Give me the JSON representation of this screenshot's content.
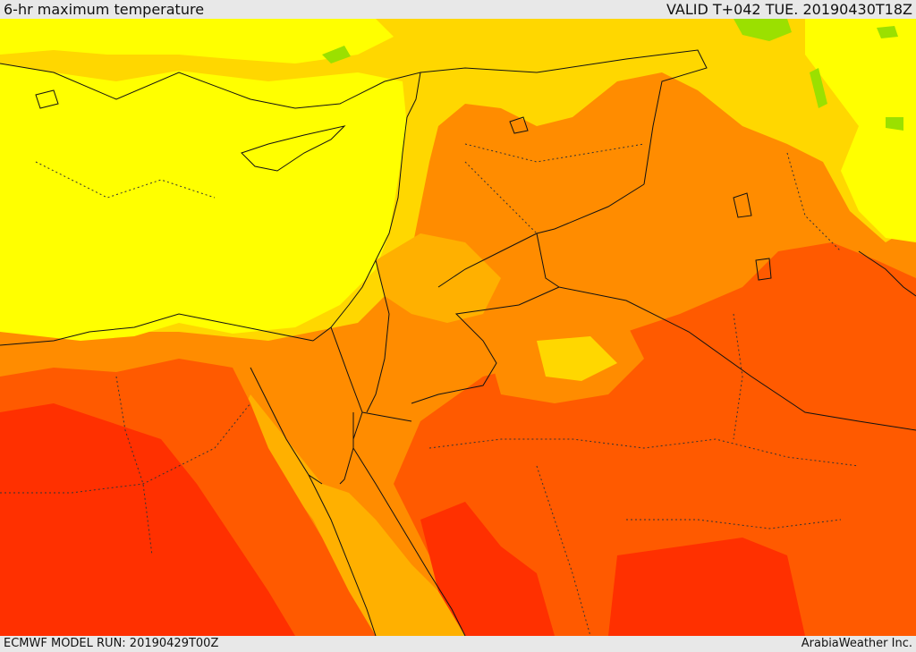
{
  "header": {
    "title": "6-hr maximum temperature",
    "valid": "VALID T+042 TUE. 20190430T18Z"
  },
  "footer": {
    "model_run": "ECMWF MODEL RUN: 20190429T00Z",
    "credit": "ArabiaWeather Inc."
  },
  "colors": {
    "yellow": "#ffff00",
    "gold": "#ffd700",
    "amber": "#ffb000",
    "orange": "#ff8c00",
    "red_orange": "#ff5a00",
    "red": "#ff3000",
    "green": "#9be000",
    "border": "#111111"
  }
}
